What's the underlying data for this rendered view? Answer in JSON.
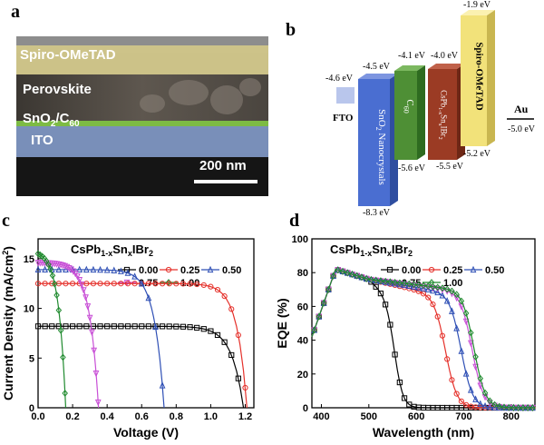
{
  "panels": {
    "a": "a",
    "b": "b",
    "c": "c",
    "d": "d"
  },
  "sem": {
    "layers": [
      "Spiro-OMeTAD",
      "Perovskite",
      "SnO",
      "2",
      "/C",
      "60",
      "ITO"
    ],
    "scalebar": "200 nm"
  },
  "bands": {
    "fto": {
      "label": "FTO",
      "level": "-4.6 eV",
      "color": "#b9c6ec"
    },
    "sno2": {
      "label_a": "SnO",
      "label_b": "2",
      "label_c": " Nanocrystals",
      "top": "-4.5 eV",
      "bottom": "-8.3 eV",
      "color": "#4a6ed1"
    },
    "c60": {
      "label_a": "C",
      "label_b": "60",
      "top": "-4.1 eV",
      "bottom": "-5.6 eV",
      "color": "#4e8f35"
    },
    "perov": {
      "label_a": "CsPb",
      "label_b": "1-x",
      "label_c": "Sn",
      "label_d": "x",
      "label_e": "IBr",
      "label_f": "2",
      "top": "-4.0 eV",
      "bottom": "-5.5 eV",
      "color": "#9b3b24"
    },
    "spiro": {
      "label": "Spiro-OMeTAD",
      "top": "-1.9 eV",
      "bottom": "-5.2 eV",
      "color": "#f2e27a"
    },
    "au": {
      "label": "Au",
      "level": "-5.0 eV"
    }
  },
  "chart_data": [
    {
      "type": "line",
      "title": "CsPb1-xSnxIBr2",
      "title_parts": [
        "CsPb",
        "1-x",
        "Sn",
        "x",
        "IBr",
        "2"
      ],
      "xlabel": "Voltage (V)",
      "ylabel": "Current Density (mA/cm",
      "ylabel_sup": "2",
      "ylabel_end": ")",
      "xlim": [
        0.0,
        1.25
      ],
      "ylim": [
        0,
        17
      ],
      "xticks": [
        "0.0",
        "0.2",
        "0.4",
        "0.6",
        "0.8",
        "1.0",
        "1.2"
      ],
      "xtick_values": [
        0.0,
        0.2,
        0.4,
        0.6,
        0.8,
        1.0,
        1.2
      ],
      "yticks": [
        "0",
        "5",
        "10",
        "15"
      ],
      "ytick_values": [
        0,
        5,
        10,
        15
      ],
      "series": [
        {
          "name": "0.00",
          "color": "#000000",
          "marker": "square",
          "jsc": 8.2,
          "voc": 1.19,
          "n": 2.6
        },
        {
          "name": "0.25",
          "color": "#e5312b",
          "marker": "circle",
          "jsc": 12.5,
          "voc": 1.21,
          "n": 2.2
        },
        {
          "name": "0.50",
          "color": "#2e4fb5",
          "marker": "triangle",
          "jsc": 13.9,
          "voc": 0.73,
          "n": 2.2
        },
        {
          "name": "0.75",
          "color": "#c84fd6",
          "marker": "triangle-down",
          "jsc": 14.6,
          "voc": 0.35,
          "n": 2.0
        },
        {
          "name": "1.00",
          "color": "#1f8a2e",
          "marker": "diamond",
          "jsc": 15.5,
          "voc": 0.16,
          "n": 1.6
        }
      ]
    },
    {
      "type": "line",
      "title": "CsPb1-xSnxIBr2",
      "title_parts": [
        "CsPb",
        "1-x",
        "Sn",
        "x",
        "IBr",
        "2"
      ],
      "xlabel": "Wavelength (nm)",
      "ylabel": "EQE (%)",
      "xlim": [
        380,
        850
      ],
      "ylim": [
        0,
        100
      ],
      "xticks": [
        "400",
        "500",
        "600",
        "700",
        "800"
      ],
      "xtick_values": [
        400,
        500,
        600,
        700,
        800
      ],
      "yticks": [
        "0",
        "20",
        "40",
        "60",
        "80",
        "100"
      ],
      "ytick_values": [
        0,
        20,
        40,
        60,
        80,
        100
      ],
      "series": [
        {
          "name": "0.00",
          "color": "#000000",
          "marker": "square",
          "plateau": 63,
          "edge": 555,
          "width": 9
        },
        {
          "name": "0.25",
          "color": "#e5312b",
          "marker": "circle",
          "plateau": 66,
          "edge": 662,
          "width": 12
        },
        {
          "name": "0.50",
          "color": "#2e4fb5",
          "marker": "triangle",
          "plateau": 67,
          "edge": 695,
          "width": 12
        },
        {
          "name": "0.75",
          "color": "#c84fd6",
          "marker": "triangle-down",
          "plateau": 68,
          "edge": 718,
          "width": 12
        },
        {
          "name": "1.00",
          "color": "#1f8a2e",
          "marker": "diamond",
          "plateau": 69,
          "edge": 722,
          "width": 12
        }
      ]
    }
  ]
}
